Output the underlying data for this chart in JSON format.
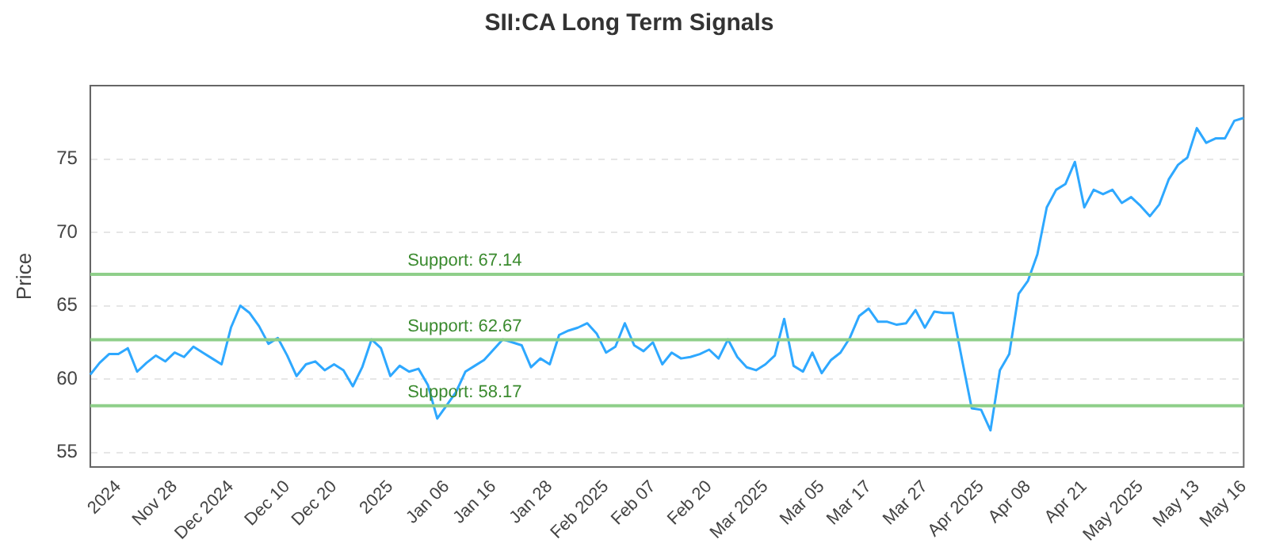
{
  "chart_data": {
    "type": "line",
    "title": "SII:CA Long Term Signals",
    "ylabel": "Price",
    "categories": [
      null,
      null,
      null,
      "2024",
      null,
      null,
      null,
      null,
      null,
      "Nov 28",
      null,
      null,
      null,
      null,
      null,
      "Dec 2024",
      null,
      null,
      null,
      null,
      null,
      "Dec 10",
      null,
      null,
      null,
      null,
      "Dec 20",
      null,
      null,
      null,
      null,
      null,
      "2025",
      null,
      null,
      null,
      null,
      null,
      "Jan 06",
      null,
      null,
      null,
      null,
      "Jan 16",
      null,
      null,
      null,
      null,
      null,
      "Jan 28",
      null,
      null,
      null,
      null,
      null,
      "Feb 2025",
      null,
      null,
      null,
      null,
      "Feb 07",
      null,
      null,
      null,
      null,
      null,
      "Feb 20",
      null,
      null,
      null,
      null,
      null,
      "Mar 2025",
      null,
      null,
      null,
      null,
      null,
      "Mar 05",
      null,
      null,
      null,
      null,
      "Mar 17",
      null,
      null,
      null,
      null,
      null,
      "Mar 27",
      null,
      null,
      null,
      null,
      null,
      "Apr 2025",
      null,
      null,
      null,
      null,
      "Apr 08",
      null,
      null,
      null,
      null,
      null,
      "Apr 21",
      null,
      null,
      null,
      null,
      null,
      "May 2025",
      null,
      null,
      null,
      null,
      null,
      "May 13",
      null,
      null,
      null,
      null,
      "May 16"
    ],
    "series": [
      {
        "color": "#2ea8ff",
        "values": [
          60.3,
          61.1,
          61.7,
          61.7,
          62.1,
          60.5,
          61.1,
          61.6,
          61.2,
          61.8,
          61.5,
          62.2,
          61.8,
          61.4,
          61.0,
          63.5,
          65.0,
          64.5,
          63.6,
          62.4,
          62.8,
          61.6,
          60.2,
          61.0,
          61.2,
          60.6,
          61.0,
          60.6,
          59.5,
          60.8,
          62.7,
          62.1,
          60.2,
          60.9,
          60.5,
          60.7,
          59.6,
          57.3,
          58.2,
          59.1,
          60.5,
          60.9,
          61.3,
          62.0,
          62.7,
          62.5,
          62.3,
          60.8,
          61.4,
          61.0,
          63.0,
          63.3,
          63.5,
          63.8,
          63.1,
          61.8,
          62.2,
          63.8,
          62.3,
          61.9,
          62.5,
          61.0,
          61.8,
          61.4,
          61.5,
          61.7,
          62.0,
          61.4,
          62.7,
          61.5,
          60.8,
          60.6,
          61.0,
          61.6,
          64.1,
          60.9,
          60.5,
          61.8,
          60.4,
          61.3,
          61.8,
          62.8,
          64.3,
          64.8,
          63.9,
          63.9,
          63.7,
          63.8,
          64.7,
          63.5,
          64.6,
          64.5,
          64.5,
          61.2,
          58.0,
          57.9,
          56.5,
          60.6,
          61.7,
          65.8,
          66.7,
          68.5,
          71.7,
          72.9,
          73.3,
          74.8,
          71.7,
          72.9,
          72.6,
          72.9,
          72.0,
          72.4,
          71.8,
          71.1,
          71.9,
          73.6,
          74.6,
          75.1,
          77.1,
          76.1,
          76.4,
          76.4,
          77.6,
          77.8
        ]
      }
    ],
    "ylim": [
      54,
      80
    ],
    "yticks": [
      55,
      60,
      65,
      70,
      75
    ],
    "grid": "y",
    "legend": false,
    "marker": "none",
    "line_style": "solid",
    "ref_lines": [
      {
        "axis": "y",
        "value": 67.14,
        "label": "Support: 67.14",
        "color": "#8fcf8a"
      },
      {
        "axis": "y",
        "value": 62.67,
        "label": "Support: 62.67",
        "color": "#8fcf8a"
      },
      {
        "axis": "y",
        "value": 58.17,
        "label": "Support: 58.17",
        "color": "#8fcf8a"
      }
    ]
  }
}
